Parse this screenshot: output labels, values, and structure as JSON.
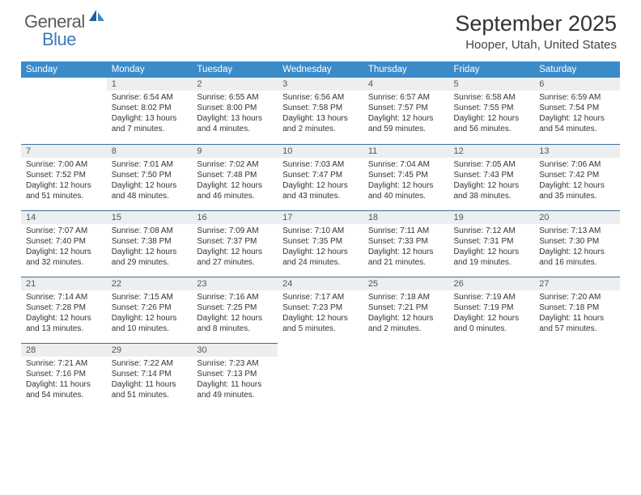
{
  "logo": {
    "text1": "General",
    "text2": "Blue"
  },
  "title": "September 2025",
  "location": "Hooper, Utah, United States",
  "colors": {
    "header_bg": "#3b8bc9",
    "header_text": "#ffffff",
    "band_bg": "#eceeef",
    "band_border": "#3b6fa0",
    "logo_gray": "#5a5a5a",
    "logo_blue": "#3b7bbf"
  },
  "dow": [
    "Sunday",
    "Monday",
    "Tuesday",
    "Wednesday",
    "Thursday",
    "Friday",
    "Saturday"
  ],
  "weeks": [
    [
      null,
      {
        "n": "1",
        "sr": "6:54 AM",
        "ss": "8:02 PM",
        "dl": "13 hours and 7 minutes."
      },
      {
        "n": "2",
        "sr": "6:55 AM",
        "ss": "8:00 PM",
        "dl": "13 hours and 4 minutes."
      },
      {
        "n": "3",
        "sr": "6:56 AM",
        "ss": "7:58 PM",
        "dl": "13 hours and 2 minutes."
      },
      {
        "n": "4",
        "sr": "6:57 AM",
        "ss": "7:57 PM",
        "dl": "12 hours and 59 minutes."
      },
      {
        "n": "5",
        "sr": "6:58 AM",
        "ss": "7:55 PM",
        "dl": "12 hours and 56 minutes."
      },
      {
        "n": "6",
        "sr": "6:59 AM",
        "ss": "7:54 PM",
        "dl": "12 hours and 54 minutes."
      }
    ],
    [
      {
        "n": "7",
        "sr": "7:00 AM",
        "ss": "7:52 PM",
        "dl": "12 hours and 51 minutes."
      },
      {
        "n": "8",
        "sr": "7:01 AM",
        "ss": "7:50 PM",
        "dl": "12 hours and 48 minutes."
      },
      {
        "n": "9",
        "sr": "7:02 AM",
        "ss": "7:48 PM",
        "dl": "12 hours and 46 minutes."
      },
      {
        "n": "10",
        "sr": "7:03 AM",
        "ss": "7:47 PM",
        "dl": "12 hours and 43 minutes."
      },
      {
        "n": "11",
        "sr": "7:04 AM",
        "ss": "7:45 PM",
        "dl": "12 hours and 40 minutes."
      },
      {
        "n": "12",
        "sr": "7:05 AM",
        "ss": "7:43 PM",
        "dl": "12 hours and 38 minutes."
      },
      {
        "n": "13",
        "sr": "7:06 AM",
        "ss": "7:42 PM",
        "dl": "12 hours and 35 minutes."
      }
    ],
    [
      {
        "n": "14",
        "sr": "7:07 AM",
        "ss": "7:40 PM",
        "dl": "12 hours and 32 minutes."
      },
      {
        "n": "15",
        "sr": "7:08 AM",
        "ss": "7:38 PM",
        "dl": "12 hours and 29 minutes."
      },
      {
        "n": "16",
        "sr": "7:09 AM",
        "ss": "7:37 PM",
        "dl": "12 hours and 27 minutes."
      },
      {
        "n": "17",
        "sr": "7:10 AM",
        "ss": "7:35 PM",
        "dl": "12 hours and 24 minutes."
      },
      {
        "n": "18",
        "sr": "7:11 AM",
        "ss": "7:33 PM",
        "dl": "12 hours and 21 minutes."
      },
      {
        "n": "19",
        "sr": "7:12 AM",
        "ss": "7:31 PM",
        "dl": "12 hours and 19 minutes."
      },
      {
        "n": "20",
        "sr": "7:13 AM",
        "ss": "7:30 PM",
        "dl": "12 hours and 16 minutes."
      }
    ],
    [
      {
        "n": "21",
        "sr": "7:14 AM",
        "ss": "7:28 PM",
        "dl": "12 hours and 13 minutes."
      },
      {
        "n": "22",
        "sr": "7:15 AM",
        "ss": "7:26 PM",
        "dl": "12 hours and 10 minutes."
      },
      {
        "n": "23",
        "sr": "7:16 AM",
        "ss": "7:25 PM",
        "dl": "12 hours and 8 minutes."
      },
      {
        "n": "24",
        "sr": "7:17 AM",
        "ss": "7:23 PM",
        "dl": "12 hours and 5 minutes."
      },
      {
        "n": "25",
        "sr": "7:18 AM",
        "ss": "7:21 PM",
        "dl": "12 hours and 2 minutes."
      },
      {
        "n": "26",
        "sr": "7:19 AM",
        "ss": "7:19 PM",
        "dl": "12 hours and 0 minutes."
      },
      {
        "n": "27",
        "sr": "7:20 AM",
        "ss": "7:18 PM",
        "dl": "11 hours and 57 minutes."
      }
    ],
    [
      {
        "n": "28",
        "sr": "7:21 AM",
        "ss": "7:16 PM",
        "dl": "11 hours and 54 minutes."
      },
      {
        "n": "29",
        "sr": "7:22 AM",
        "ss": "7:14 PM",
        "dl": "11 hours and 51 minutes."
      },
      {
        "n": "30",
        "sr": "7:23 AM",
        "ss": "7:13 PM",
        "dl": "11 hours and 49 minutes."
      },
      null,
      null,
      null,
      null
    ]
  ],
  "labels": {
    "sunrise": "Sunrise:",
    "sunset": "Sunset:",
    "daylight": "Daylight:"
  }
}
